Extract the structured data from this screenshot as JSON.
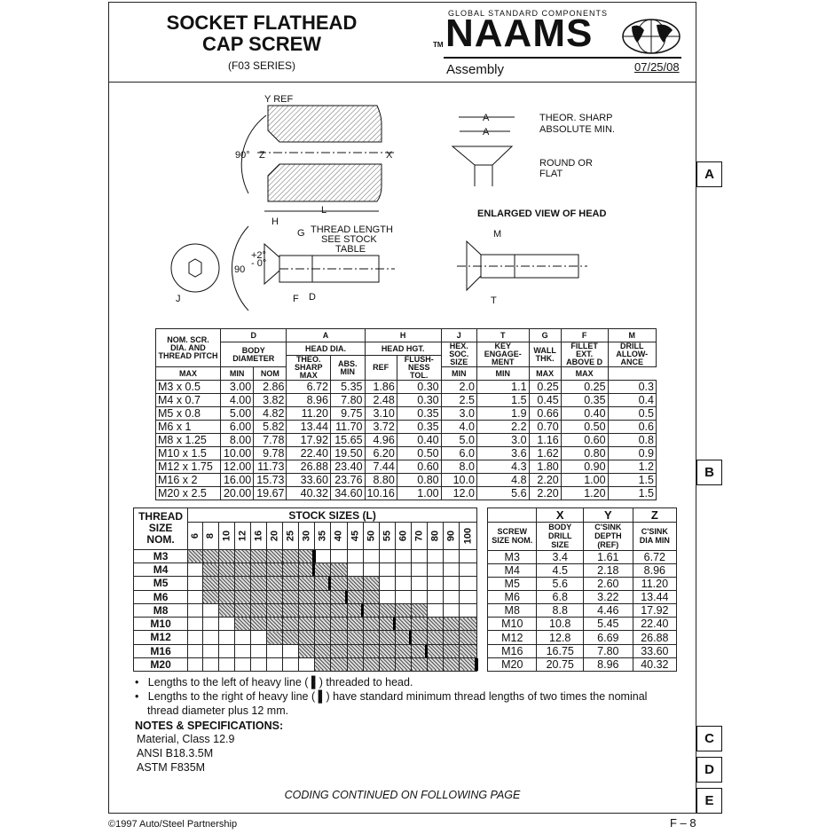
{
  "header": {
    "title_line1": "SOCKET FLATHEAD",
    "title_line2": "CAP SCREW",
    "series": "(F03 SERIES)",
    "logo_tagline": "GLOBAL STANDARD COMPONENTS",
    "logo_tm": "TM",
    "logo_text": "NAAMS",
    "section": "Assembly",
    "date": "07/25/08"
  },
  "tabs": [
    "A",
    "B",
    "C",
    "D",
    "E"
  ],
  "diagram": {
    "y_ref": "Y REF",
    "angle_90_deg": "90°",
    "z": "Z",
    "x": "X",
    "l": "L",
    "h": "H",
    "g": "G",
    "thread_length": [
      "THREAD LENGTH",
      "SEE STOCK",
      "TABLE"
    ],
    "tol_plus": "+2°",
    "tol_minus": "- 0°",
    "angle_90": "90",
    "f": "F",
    "d": "D",
    "j": "J",
    "a": "A",
    "theor_sharp": "THEOR. SHARP",
    "absolute_min": "ABSOLUTE MIN.",
    "round_or_flat": [
      "ROUND OR",
      "FLAT"
    ],
    "enlarged_view": "ENLARGED VIEW OF HEAD",
    "m": "M",
    "t": "T"
  },
  "spec_table": {
    "letters": [
      "D",
      "A",
      "H",
      "J",
      "T",
      "G",
      "F",
      "M"
    ],
    "nom_header": "NOM. SCR. DIA. AND THREAD PITCH",
    "group_headers": {
      "body": "BODY DIAMETER",
      "head_dia": "HEAD DIA.",
      "head_hgt": "HEAD HGT.",
      "hex": "HEX. SOC. SIZE",
      "key": "KEY ENGAGE-MENT",
      "wall": "WALL THK.",
      "fillet": "FILLET EXT. ABOVE D",
      "drill": "DRILL ALLOW-ANCE"
    },
    "sub_headers": {
      "theo": "THEO. SHARP MAX",
      "abs": "ABS. MIN",
      "ref": "REF",
      "flush": "FLUSH-NESS TOL."
    },
    "units": [
      "MAX",
      "MIN",
      "NOM",
      "MIN",
      "MIN",
      "MAX",
      "MAX"
    ],
    "rows": [
      [
        "M3 x 0.5",
        "3.00",
        "2.86",
        "6.72",
        "5.35",
        "1.86",
        "0.30",
        "2.0",
        "1.1",
        "0.25",
        "0.25",
        "0.3"
      ],
      [
        "M4 x 0.7",
        "4.00",
        "3.82",
        "8.96",
        "7.80",
        "2.48",
        "0.30",
        "2.5",
        "1.5",
        "0.45",
        "0.35",
        "0.4"
      ],
      [
        "M5 x 0.8",
        "5.00",
        "4.82",
        "11.20",
        "9.75",
        "3.10",
        "0.35",
        "3.0",
        "1.9",
        "0.66",
        "0.40",
        "0.5"
      ],
      [
        "M6 x 1",
        "6.00",
        "5.82",
        "13.44",
        "11.70",
        "3.72",
        "0.35",
        "4.0",
        "2.2",
        "0.70",
        "0.50",
        "0.6"
      ],
      [
        "M8 x 1.25",
        "8.00",
        "7.78",
        "17.92",
        "15.65",
        "4.96",
        "0.40",
        "5.0",
        "3.0",
        "1.16",
        "0.60",
        "0.8"
      ],
      [
        "M10 x 1.5",
        "10.00",
        "9.78",
        "22.40",
        "19.50",
        "6.20",
        "0.50",
        "6.0",
        "3.6",
        "1.62",
        "0.80",
        "0.9"
      ],
      [
        "M12 x 1.75",
        "12.00",
        "11.73",
        "26.88",
        "23.40",
        "7.44",
        "0.60",
        "8.0",
        "4.3",
        "1.80",
        "0.90",
        "1.2"
      ],
      [
        "M16 x 2",
        "16.00",
        "15.73",
        "33.60",
        "23.76",
        "8.80",
        "0.80",
        "10.0",
        "4.8",
        "2.20",
        "1.00",
        "1.5"
      ],
      [
        "M20 x 2.5",
        "20.00",
        "19.67",
        "40.32",
        "34.60",
        "10.16",
        "1.00",
        "12.0",
        "5.6",
        "2.20",
        "1.20",
        "1.5"
      ]
    ]
  },
  "stock_table": {
    "thread_header": [
      "THREAD",
      "SIZE",
      "NOM."
    ],
    "title": "STOCK SIZES (L)",
    "lengths": [
      "6",
      "8",
      "10",
      "12",
      "16",
      "20",
      "25",
      "30",
      "35",
      "40",
      "45",
      "50",
      "55",
      "60",
      "70",
      "80",
      "90",
      "100"
    ],
    "rows": [
      {
        "size": "M3",
        "from": "6",
        "to": "30",
        "heavy_line_after": "30"
      },
      {
        "size": "M4",
        "from": "8",
        "to": "40",
        "heavy_line_after": "30"
      },
      {
        "size": "M5",
        "from": "8",
        "to": "50",
        "heavy_line_after": "35"
      },
      {
        "size": "M6",
        "from": "8",
        "to": "50",
        "heavy_line_after": "40"
      },
      {
        "size": "M8",
        "from": "10",
        "to": "70",
        "heavy_line_after": "45"
      },
      {
        "size": "M10",
        "from": "12",
        "to": "100",
        "heavy_line_after": "55"
      },
      {
        "size": "M12",
        "from": "20",
        "to": "100",
        "heavy_line_after": "60"
      },
      {
        "size": "M16",
        "from": "30",
        "to": "100",
        "heavy_line_after": "70"
      },
      {
        "size": "M20",
        "from": "35",
        "to": "100",
        "heavy_line_after": "100"
      }
    ]
  },
  "xyz_table": {
    "letters": [
      "X",
      "Y",
      "Z"
    ],
    "headers": [
      "SCREW SIZE NOM.",
      "BODY DRILL SIZE",
      "C'SINK DEPTH (REF)",
      "C'SINK DIA MIN"
    ],
    "rows": [
      [
        "M3",
        "3.4",
        "1.61",
        "6.72"
      ],
      [
        "M4",
        "4.5",
        "2.18",
        "8.96"
      ],
      [
        "M5",
        "5.6",
        "2.60",
        "11.20"
      ],
      [
        "M6",
        "6.8",
        "3.22",
        "13.44"
      ],
      [
        "M8",
        "8.8",
        "4.46",
        "17.92"
      ],
      [
        "M10",
        "10.8",
        "5.45",
        "22.40"
      ],
      [
        "M12",
        "12.8",
        "6.69",
        "26.88"
      ],
      [
        "M16",
        "16.75",
        "7.80",
        "33.60"
      ],
      [
        "M20",
        "20.75",
        "8.96",
        "40.32"
      ]
    ]
  },
  "notes": {
    "bullet1": "Lengths to the left of heavy line ( ▌) threaded to head.",
    "bullet2a": "Lengths to the right of heavy line  ( ▌) have standard minimum thread lengths of two times the nominal",
    "bullet2b": "thread diameter plus 12 mm.",
    "spec_title": "NOTES & SPECIFICATIONS:",
    "specs": [
      "Material, Class 12.9",
      "ANSI B18.3.5M",
      "ASTM F835M"
    ],
    "coding": "CODING CONTINUED ON FOLLOWING PAGE"
  },
  "footer": {
    "copyright": "©1997 Auto/Steel Partnership",
    "page": "F – 8"
  }
}
